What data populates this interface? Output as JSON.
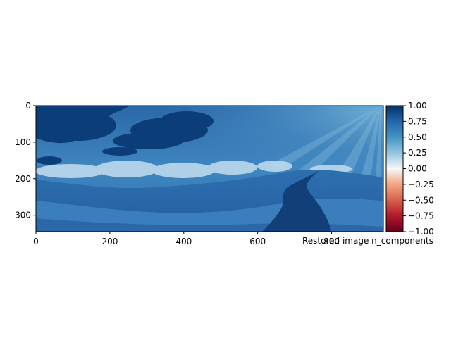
{
  "chart_data": {
    "type": "heatmap",
    "title": "",
    "xlabel": "Restored image n_components",
    "ylabel": "",
    "xlim": [
      0,
      940
    ],
    "ylim": [
      345,
      0
    ],
    "xticks": [
      0,
      200,
      400,
      600,
      800
    ],
    "xtick_labels": [
      "0",
      "200",
      "400",
      "600",
      "800"
    ],
    "yticks": [
      0,
      100,
      200,
      300
    ],
    "ytick_labels": [
      "0",
      "100",
      "200",
      "300"
    ],
    "colormap": "RdBu",
    "colorbar": {
      "range": [
        -1.0,
        1.0
      ],
      "ticks": [
        1.0,
        0.75,
        0.5,
        0.25,
        0.0,
        -0.25,
        -0.5,
        -0.75,
        -1.0
      ],
      "tick_labels": [
        "1.00",
        "0.75",
        "0.50",
        "0.25",
        "0.00",
        "−0.25",
        "−0.50",
        "−0.75",
        "−1.00"
      ],
      "colors": {
        "low": "#67001f",
        "mid_low": "#d6604d",
        "mid": "#f7f7f7",
        "mid_high": "#4393c3",
        "high": "#053061"
      }
    }
  }
}
